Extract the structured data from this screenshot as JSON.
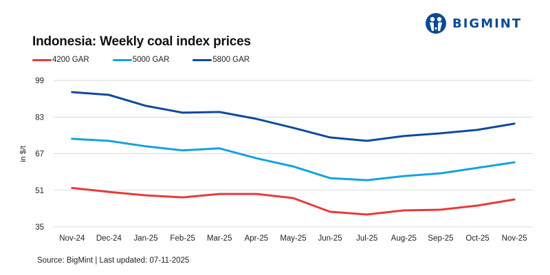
{
  "brand": {
    "name": "BIGMINT",
    "color": "#0b4a94"
  },
  "source_note": "Source: BigMint | Last updated: 07-11-2025",
  "chart_data": {
    "type": "line",
    "title": "Indonesia: Weekly coal index prices",
    "xlabel": "",
    "ylabel": "in $/t",
    "ylim": [
      35,
      99
    ],
    "yticks": [
      35,
      51,
      67,
      83,
      99
    ],
    "grid": true,
    "legend_position": "top-left",
    "categories": [
      "Nov-24",
      "Dec-24",
      "Jan-25",
      "Feb-25",
      "Mar-25",
      "Apr-25",
      "May-25",
      "Jun-25",
      "Jul-25",
      "Aug-25",
      "Sep-25",
      "Oct-25",
      "Nov-25"
    ],
    "series": [
      {
        "name": "4200 GAR",
        "color": "#e8393a",
        "values": [
          52.0,
          50.3,
          48.8,
          47.9,
          49.4,
          49.4,
          47.6,
          41.6,
          40.4,
          42.2,
          42.5,
          44.3,
          47.0
        ]
      },
      {
        "name": "5000 GAR",
        "color": "#12a3e0",
        "values": [
          73.5,
          72.6,
          70.2,
          68.4,
          69.3,
          65.0,
          61.4,
          56.3,
          55.4,
          57.2,
          58.4,
          60.8,
          63.2
        ]
      },
      {
        "name": "5800 GAR",
        "color": "#0b4a9c",
        "values": [
          93.9,
          92.7,
          87.9,
          84.9,
          85.2,
          82.2,
          78.3,
          74.1,
          72.6,
          74.7,
          75.9,
          77.4,
          80.1
        ]
      }
    ]
  }
}
